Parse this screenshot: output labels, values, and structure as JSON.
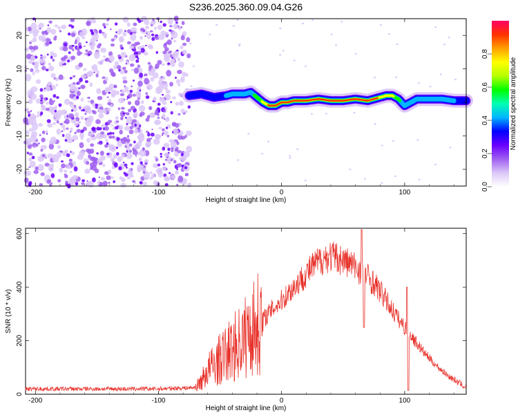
{
  "title": "S236.2025.360.09.04.G26",
  "colors": {
    "snr_line": "#e8312a",
    "background": "#ffffff",
    "axis": "#000000"
  },
  "chart_data": [
    {
      "type": "heatmap",
      "xlabel": "Height of straight line (km)",
      "ylabel": "Frequency (Hz)",
      "xlim": [
        -208,
        150
      ],
      "ylim": [
        -25,
        25
      ],
      "x_ticks": [
        -200,
        -100,
        0,
        100
      ],
      "y_ticks": [
        -20,
        -10,
        0,
        10,
        20
      ],
      "colorbar": {
        "label": "Normalized spectral amplitude",
        "range": [
          0.0,
          1.0
        ],
        "ticks": [
          "0.0",
          "0.2",
          "0.4",
          "0.6",
          "0.8"
        ],
        "colormap": [
          "#ffffff",
          "#dcc8f8",
          "#a060f0",
          "#6a00ff",
          "#0000ff",
          "#00b4ff",
          "#00ffb4",
          "#00ff00",
          "#b4ff00",
          "#ffff00",
          "#ffa000",
          "#ff3200",
          "#ff0064"
        ]
      },
      "noise_region_x": [
        -208,
        -75
      ],
      "signal_trace": {
        "x": [
          -75,
          -65,
          -55,
          -45,
          -40,
          -30,
          -25,
          -20,
          -15,
          -10,
          -5,
          0,
          5,
          10,
          20,
          30,
          40,
          50,
          60,
          70,
          80,
          85,
          90,
          95,
          100,
          110,
          120,
          130,
          140,
          150
        ],
        "freq": [
          2,
          2.5,
          1.5,
          2,
          2.5,
          2.5,
          3,
          1.5,
          0,
          -1,
          -1,
          0,
          0,
          0.5,
          0.5,
          1,
          0.5,
          0.5,
          1,
          0.5,
          1.5,
          2,
          2,
          1,
          -1,
          1,
          1,
          1,
          0.5,
          0.5
        ],
        "amplitude": [
          0.35,
          0.35,
          0.4,
          0.45,
          0.5,
          0.55,
          0.55,
          0.6,
          0.75,
          0.9,
          0.95,
          0.95,
          0.9,
          0.9,
          0.9,
          0.9,
          0.95,
          0.95,
          0.9,
          0.9,
          0.85,
          0.8,
          0.75,
          0.6,
          0.5,
          0.5,
          0.55,
          0.55,
          0.45,
          0.35
        ]
      }
    },
    {
      "type": "line",
      "xlabel": "Height of straight line (km)",
      "ylabel": "SNR (10 * v/v)",
      "xlim": [
        -208,
        150
      ],
      "ylim": [
        0,
        620
      ],
      "x_ticks": [
        -200,
        -100,
        0,
        100
      ],
      "y_ticks": [
        0,
        200,
        400,
        600
      ],
      "series": [
        {
          "x": [
            -208,
            -150,
            -100,
            -70,
            -65,
            -60,
            -55,
            -50,
            -45,
            -40,
            -35,
            -30,
            -25,
            -20,
            -15,
            -10,
            -5,
            0,
            5,
            10,
            15,
            20,
            25,
            30,
            35,
            40,
            45,
            50,
            55,
            60,
            65,
            70,
            75,
            80,
            85,
            90,
            95,
            100,
            105,
            110,
            115,
            120,
            125,
            130,
            135,
            140,
            145,
            150
          ],
          "y": [
            20,
            20,
            20,
            25,
            50,
            90,
            110,
            130,
            150,
            170,
            190,
            210,
            240,
            260,
            280,
            305,
            330,
            350,
            375,
            400,
            425,
            450,
            475,
            495,
            510,
            515,
            510,
            500,
            490,
            475,
            460,
            440,
            415,
            385,
            350,
            315,
            280,
            250,
            220,
            190,
            160,
            135,
            110,
            90,
            70,
            55,
            40,
            25
          ]
        }
      ]
    }
  ]
}
